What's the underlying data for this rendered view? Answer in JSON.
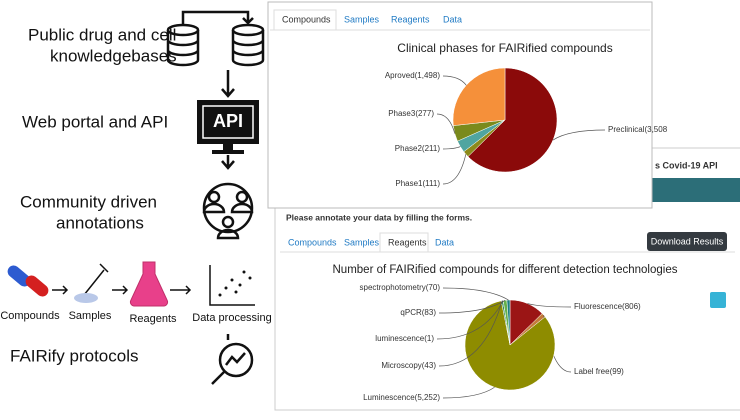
{
  "steps": [
    "Public drug and cell",
    "knowledgebases",
    "Web portal and API",
    "Community driven",
    "annotations",
    "FAIRify protocols"
  ],
  "api_icon": "API",
  "pipeline": [
    "Compounds",
    "Samples",
    "Reagents",
    "Data processing"
  ],
  "panel1": {
    "tabs": [
      "Compounds",
      "Samples",
      "Reagents",
      "Data"
    ]
  },
  "panel2": {
    "header": "s Covid-19 API",
    "instruction": "Please annotate your data by filling the forms.",
    "tabs": [
      "Compounds",
      "Samples",
      "Reagents",
      "Data"
    ],
    "button": "Download Results"
  },
  "chart_data": [
    {
      "type": "pie",
      "title": "Clinical phases for FAIRified compounds",
      "categories": [
        "Preclinical(3,508",
        "Phase1(111)",
        "Phase2(211)",
        "Phase3(277)",
        "Aproved(1,498)"
      ],
      "values": [
        3508,
        111,
        211,
        277,
        1498
      ],
      "colors": [
        "#8b0a0a",
        "#8c8a1a",
        "#4fa5a0",
        "#7a8a1c",
        "#f5903a"
      ]
    },
    {
      "type": "pie",
      "title": "Number of FAIRified compounds for different detection technologies",
      "categories": [
        "Fluorescence(806)",
        "Label free(99)",
        "Luminescence(5,252)",
        "Microscopy(43)",
        "luminescence(1)",
        "qPCR(83)",
        "spectrophotometry(70)"
      ],
      "values": [
        806,
        99,
        5252,
        43,
        1,
        83,
        70
      ],
      "colors": [
        "#9b1515",
        "#c47a3a",
        "#8e8c00",
        "#2f8a5a",
        "#444444",
        "#66b04a",
        "#1b7f7f"
      ]
    }
  ]
}
